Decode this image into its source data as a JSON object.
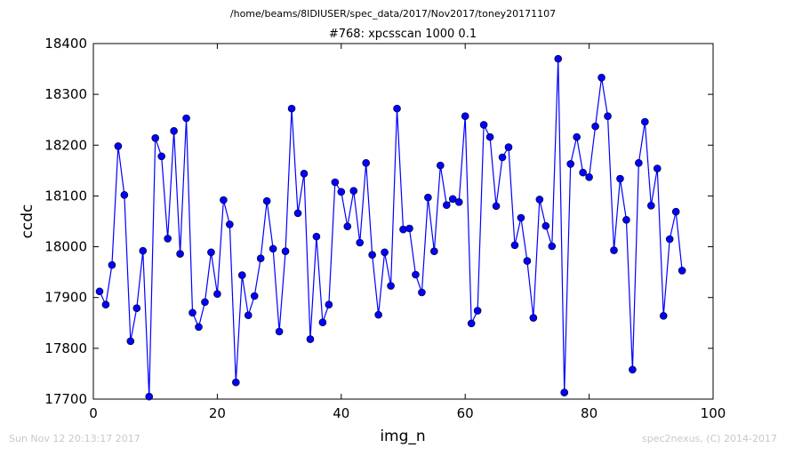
{
  "header": {
    "path": "/home/beams/8IDIUSER/spec_data/2017/Nov2017/toney20171107"
  },
  "footer": {
    "timestamp": "Sun Nov 12 20:13:17 2017",
    "credit": "spec2nexus, (C) 2014-2017"
  },
  "chart_data": {
    "type": "line",
    "title": "#768: xpcsscan 1000 0.1",
    "xlabel": "img_n",
    "ylabel": "ccdc",
    "xlim": [
      0,
      100
    ],
    "ylim": [
      17700,
      18400
    ],
    "xticks": [
      0,
      20,
      40,
      60,
      80,
      100
    ],
    "yticks": [
      17700,
      17800,
      17900,
      18000,
      18100,
      18200,
      18300,
      18400
    ],
    "grid": false,
    "line_color": "#0000ff",
    "marker": "circle",
    "series": [
      {
        "x": [
          1,
          2,
          3,
          4,
          5,
          6,
          7,
          8,
          9,
          10,
          11,
          12,
          13,
          14,
          15,
          16,
          17,
          18,
          19,
          20,
          21,
          22,
          23,
          24,
          25,
          26,
          27,
          28,
          29,
          30,
          31,
          32,
          33,
          34,
          35,
          36,
          37,
          38,
          39,
          40,
          41,
          42,
          43,
          44,
          45,
          46,
          47,
          48,
          49,
          50,
          51,
          52,
          53,
          54,
          55,
          56,
          57,
          58,
          59,
          60,
          61,
          62,
          63,
          64,
          65,
          66,
          67,
          68,
          69,
          70,
          71,
          72,
          73,
          74,
          75,
          76,
          77,
          78,
          79,
          80,
          81,
          82,
          83,
          84,
          85,
          86,
          87,
          88,
          89,
          90,
          91,
          92,
          93,
          94,
          95
        ],
        "values": [
          17912,
          17886,
          17964,
          18198,
          18102,
          17814,
          17879,
          17992,
          17705,
          18214,
          18178,
          18016,
          18228,
          17986,
          18253,
          17870,
          17842,
          17891,
          17989,
          17907,
          18092,
          18044,
          17733,
          17944,
          17865,
          17903,
          17977,
          18090,
          17996,
          17833,
          17991,
          18272,
          18066,
          18144,
          17818,
          18020,
          17851,
          17886,
          18127,
          18108,
          18040,
          18110,
          18008,
          18165,
          17984,
          17866,
          17989,
          17923,
          18272,
          18034,
          18036,
          17945,
          17910,
          18097,
          17991,
          18160,
          18082,
          18094,
          18088,
          18257,
          17849,
          17874,
          18240,
          18216,
          18080,
          18176,
          18196,
          18003,
          18057,
          17972,
          17860,
          18093,
          18041,
          18001,
          18370,
          17713,
          18163,
          18216,
          18146,
          18137,
          18237,
          18333,
          18257,
          17993,
          18134,
          18053,
          17758,
          18165,
          18246,
          18081,
          18154,
          17864,
          18015,
          18069,
          17953
        ]
      }
    ]
  }
}
